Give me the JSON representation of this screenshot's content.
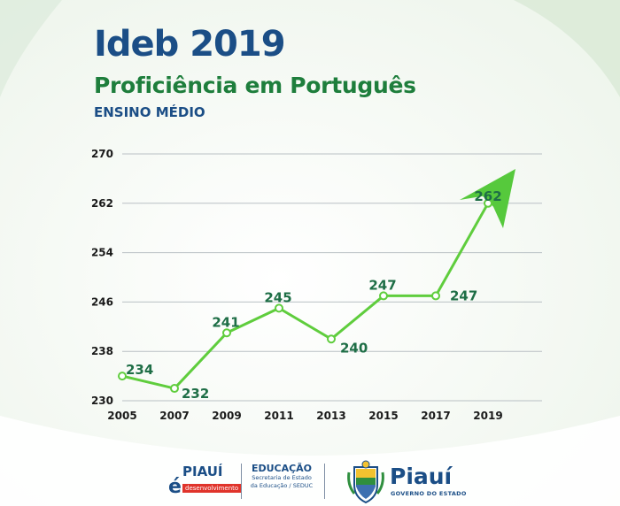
{
  "header": {
    "title": "Ideb 2019",
    "subtitle": "Proficiência em Português",
    "level": "ENSINO MÉDIO"
  },
  "colors": {
    "title": "#1b4e86",
    "subtitle": "#1e7e3c",
    "line": "#5fcd3d",
    "arrow": "#56c93c",
    "data_label": "#1e6e46",
    "grid": "#b9c0c4",
    "axis_text": "#1a1a1a"
  },
  "chart_data": {
    "type": "line",
    "title": "Proficiência em Português",
    "x": [
      "2005",
      "2007",
      "2009",
      "2011",
      "2013",
      "2015",
      "2017",
      "2019"
    ],
    "series": [
      {
        "values": [
          234,
          232,
          241,
          245,
          240,
          247,
          247,
          262
        ]
      }
    ],
    "data_labels": [
      "234",
      "232",
      "241",
      "245",
      "240",
      "247",
      "247",
      "262"
    ],
    "y_ticks": [
      "230",
      "238",
      "246",
      "254",
      "262",
      "270"
    ],
    "ylim": [
      230,
      270
    ],
    "grid": true,
    "xlabel": "",
    "ylabel": "",
    "trend_arrow": true
  },
  "footer": {
    "logo1_word": "PIAUÍ",
    "logo1_e": "é",
    "logo1_tag": "desenvolvimento",
    "logo2_title": "EDUCAÇÃO",
    "logo2_sub1": "Secretaria de Estado",
    "logo2_sub2": "da Educação / SEDUC",
    "logo3_word": "Piauí",
    "logo3_sub": "GOVERNO DO ESTADO"
  }
}
